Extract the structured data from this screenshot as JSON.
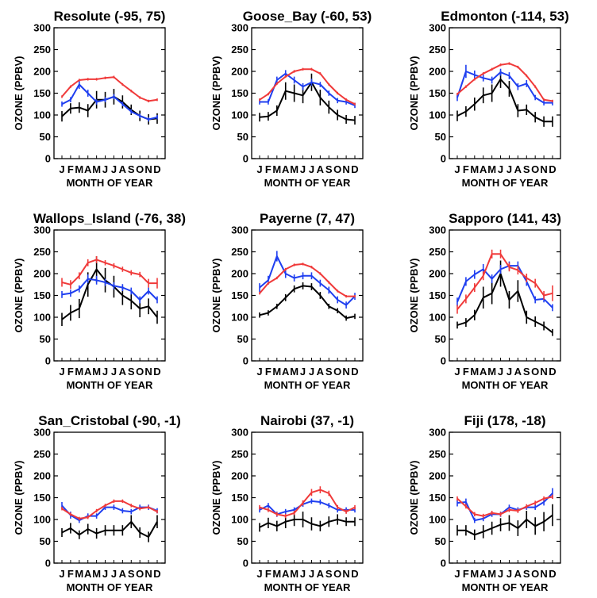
{
  "colors": {
    "black": "#000000",
    "blue": "#1f3ff0",
    "red": "#f03a3a"
  },
  "chart_data": [
    {
      "type": "line",
      "title": "Resolute (-95, 75)",
      "xlabel": "MONTH OF YEAR",
      "ylabel": "OZONE (PPBV)",
      "x": [
        "J",
        "F",
        "M",
        "A",
        "M",
        "J",
        "J",
        "A",
        "S",
        "O",
        "N",
        "D"
      ],
      "ylim": [
        0,
        300
      ],
      "yticks": [
        "0",
        "50",
        "100",
        "150",
        "200",
        "250",
        "300"
      ],
      "series": [
        {
          "color": "black",
          "values": [
            97,
            115,
            117,
            110,
            135,
            135,
            142,
            130,
            112,
            98,
            90,
            92
          ],
          "err": [
            12,
            12,
            12,
            15,
            20,
            18,
            18,
            15,
            12,
            12,
            12,
            12
          ]
        },
        {
          "color": "blue",
          "values": [
            125,
            135,
            170,
            150,
            130,
            135,
            142,
            125,
            108,
            98,
            90,
            95
          ],
          "err": [
            6,
            6,
            10,
            8,
            6,
            6,
            6,
            5,
            5,
            5,
            5,
            5
          ]
        },
        {
          "color": "red",
          "values": [
            142,
            165,
            180,
            182,
            182,
            185,
            187,
            170,
            155,
            140,
            132,
            135
          ],
          "err": [
            3,
            3,
            3,
            3,
            3,
            3,
            3,
            3,
            3,
            3,
            3,
            3
          ]
        }
      ]
    },
    {
      "type": "line",
      "title": "Goose_Bay (-60, 53)",
      "xlabel": "MONTH OF YEAR",
      "ylabel": "OZONE (PPBV)",
      "x": [
        "J",
        "F",
        "M",
        "A",
        "M",
        "J",
        "J",
        "A",
        "S",
        "O",
        "N",
        "D"
      ],
      "ylim": [
        0,
        300
      ],
      "yticks": [
        "0",
        "50",
        "100",
        "150",
        "200",
        "250",
        "300"
      ],
      "series": [
        {
          "color": "black",
          "values": [
            95,
            97,
            110,
            155,
            150,
            145,
            175,
            140,
            118,
            100,
            90,
            88
          ],
          "err": [
            10,
            10,
            12,
            20,
            20,
            18,
            20,
            18,
            15,
            12,
            10,
            10
          ]
        },
        {
          "color": "blue",
          "values": [
            130,
            130,
            180,
            195,
            180,
            165,
            175,
            170,
            150,
            133,
            130,
            122
          ],
          "err": [
            6,
            6,
            8,
            8,
            8,
            8,
            8,
            6,
            6,
            6,
            6,
            6
          ]
        },
        {
          "color": "red",
          "values": [
            135,
            148,
            172,
            188,
            200,
            205,
            205,
            195,
            170,
            150,
            135,
            125
          ],
          "err": [
            3,
            3,
            3,
            3,
            3,
            3,
            3,
            3,
            3,
            3,
            3,
            3
          ]
        }
      ]
    },
    {
      "type": "line",
      "title": "Edmonton (-114, 53)",
      "xlabel": "MONTH OF YEAR",
      "ylabel": "OZONE (PPBV)",
      "x": [
        "J",
        "F",
        "M",
        "A",
        "M",
        "J",
        "J",
        "A",
        "S",
        "O",
        "N",
        "D"
      ],
      "ylim": [
        0,
        300
      ],
      "yticks": [
        "0",
        "50",
        "100",
        "150",
        "200",
        "250",
        "300"
      ],
      "series": [
        {
          "color": "black",
          "values": [
            98,
            108,
            125,
            145,
            150,
            182,
            160,
            110,
            112,
            95,
            85,
            85
          ],
          "err": [
            12,
            12,
            15,
            18,
            20,
            20,
            18,
            15,
            12,
            12,
            12,
            12
          ]
        },
        {
          "color": "blue",
          "values": [
            140,
            200,
            192,
            185,
            180,
            198,
            190,
            165,
            172,
            140,
            128,
            128
          ],
          "err": [
            8,
            15,
            10,
            8,
            8,
            8,
            8,
            8,
            8,
            6,
            6,
            6
          ]
        },
        {
          "color": "red",
          "values": [
            148,
            165,
            182,
            195,
            205,
            215,
            218,
            210,
            190,
            165,
            135,
            132
          ],
          "err": [
            3,
            3,
            3,
            3,
            3,
            3,
            3,
            3,
            3,
            3,
            3,
            3
          ]
        }
      ]
    },
    {
      "type": "line",
      "title": "Wallops_Island (-76, 38)",
      "xlabel": "MONTH OF YEAR",
      "ylabel": "OZONE (PPBV)",
      "x": [
        "J",
        "F",
        "M",
        "A",
        "M",
        "J",
        "J",
        "A",
        "S",
        "O",
        "N",
        "D"
      ],
      "ylim": [
        0,
        300
      ],
      "yticks": [
        "0",
        "50",
        "100",
        "150",
        "200",
        "250",
        "300"
      ],
      "series": [
        {
          "color": "black",
          "values": [
            95,
            110,
            120,
            175,
            210,
            185,
            170,
            150,
            138,
            120,
            125,
            100
          ],
          "err": [
            15,
            18,
            22,
            28,
            30,
            28,
            25,
            22,
            20,
            20,
            18,
            15
          ]
        },
        {
          "color": "blue",
          "values": [
            152,
            155,
            165,
            188,
            185,
            180,
            172,
            168,
            160,
            140,
            160,
            140
          ],
          "err": [
            8,
            8,
            8,
            10,
            10,
            8,
            8,
            8,
            8,
            8,
            8,
            8
          ]
        },
        {
          "color": "red",
          "values": [
            180,
            175,
            195,
            225,
            232,
            225,
            218,
            210,
            202,
            198,
            178,
            178
          ],
          "err": [
            10,
            10,
            8,
            8,
            8,
            6,
            6,
            6,
            6,
            6,
            10,
            12
          ]
        }
      ]
    },
    {
      "type": "line",
      "title": "Payerne (7, 47)",
      "xlabel": "MONTH OF YEAR",
      "ylabel": "OZONE (PPBV)",
      "x": [
        "J",
        "F",
        "M",
        "A",
        "M",
        "J",
        "J",
        "A",
        "S",
        "O",
        "N",
        "D"
      ],
      "ylim": [
        0,
        300
      ],
      "yticks": [
        "0",
        "50",
        "100",
        "150",
        "200",
        "250",
        "300"
      ],
      "series": [
        {
          "color": "black",
          "values": [
            105,
            110,
            125,
            145,
            165,
            172,
            170,
            150,
            125,
            115,
            98,
            102
          ],
          "err": [
            6,
            6,
            6,
            8,
            8,
            8,
            8,
            8,
            6,
            6,
            6,
            6
          ]
        },
        {
          "color": "blue",
          "values": [
            168,
            185,
            240,
            200,
            190,
            195,
            195,
            178,
            162,
            140,
            128,
            148
          ],
          "err": [
            10,
            10,
            12,
            10,
            8,
            8,
            8,
            8,
            8,
            8,
            8,
            8
          ]
        },
        {
          "color": "red",
          "values": [
            155,
            178,
            190,
            210,
            220,
            222,
            215,
            200,
            180,
            160,
            148,
            148
          ],
          "err": [
            3,
            3,
            3,
            3,
            3,
            3,
            3,
            3,
            3,
            3,
            3,
            3
          ]
        }
      ]
    },
    {
      "type": "line",
      "title": "Sapporo (141, 43)",
      "xlabel": "MONTH OF YEAR",
      "ylabel": "OZONE (PPBV)",
      "x": [
        "J",
        "F",
        "M",
        "A",
        "M",
        "J",
        "J",
        "A",
        "S",
        "O",
        "N",
        "D"
      ],
      "ylim": [
        0,
        300
      ],
      "yticks": [
        "0",
        "50",
        "100",
        "150",
        "200",
        "250",
        "300"
      ],
      "series": [
        {
          "color": "black",
          "values": [
            82,
            88,
            105,
            145,
            155,
            200,
            140,
            160,
            100,
            90,
            80,
            65
          ],
          "err": [
            8,
            10,
            12,
            25,
            25,
            30,
            20,
            25,
            15,
            12,
            10,
            8
          ]
        },
        {
          "color": "blue",
          "values": [
            135,
            182,
            198,
            210,
            188,
            210,
            218,
            218,
            182,
            140,
            142,
            122
          ],
          "err": [
            10,
            10,
            10,
            12,
            10,
            10,
            10,
            10,
            10,
            8,
            8,
            8
          ]
        },
        {
          "color": "red",
          "values": [
            118,
            142,
            168,
            195,
            245,
            245,
            215,
            208,
            190,
            178,
            150,
            155
          ],
          "err": [
            10,
            10,
            10,
            10,
            10,
            10,
            10,
            10,
            10,
            10,
            10,
            18
          ]
        }
      ]
    },
    {
      "type": "line",
      "title": "San_Cristobal (-90, -1)",
      "xlabel": "MONTH OF YEAR",
      "ylabel": "OZONE (PPBV)",
      "x": [
        "J",
        "F",
        "M",
        "A",
        "M",
        "J",
        "J",
        "A",
        "S",
        "O",
        "N",
        "D"
      ],
      "ylim": [
        0,
        300
      ],
      "yticks": [
        "0",
        "50",
        "100",
        "150",
        "200",
        "250",
        "300"
      ],
      "series": [
        {
          "color": "black",
          "values": [
            70,
            80,
            65,
            78,
            68,
            75,
            75,
            75,
            95,
            70,
            60,
            95
          ],
          "err": [
            10,
            12,
            10,
            12,
            12,
            12,
            12,
            12,
            15,
            12,
            12,
            15
          ]
        },
        {
          "color": "blue",
          "values": [
            132,
            110,
            98,
            108,
            108,
            128,
            128,
            120,
            118,
            128,
            128,
            120
          ],
          "err": [
            8,
            8,
            6,
            6,
            6,
            6,
            6,
            6,
            6,
            6,
            6,
            6
          ]
        },
        {
          "color": "red",
          "values": [
            125,
            112,
            102,
            105,
            120,
            132,
            142,
            142,
            132,
            125,
            128,
            118
          ],
          "err": [
            4,
            4,
            4,
            4,
            4,
            4,
            4,
            4,
            4,
            4,
            4,
            4
          ]
        }
      ]
    },
    {
      "type": "line",
      "title": "Nairobi (37, -1)",
      "xlabel": "MONTH OF YEAR",
      "ylabel": "OZONE (PPBV)",
      "x": [
        "J",
        "F",
        "M",
        "A",
        "M",
        "J",
        "J",
        "A",
        "S",
        "O",
        "N",
        "D"
      ],
      "ylim": [
        0,
        300
      ],
      "yticks": [
        "0",
        "50",
        "100",
        "150",
        "200",
        "250",
        "300"
      ],
      "series": [
        {
          "color": "black",
          "values": [
            82,
            92,
            85,
            95,
            100,
            100,
            90,
            85,
            95,
            100,
            95,
            95
          ],
          "err": [
            10,
            12,
            12,
            15,
            15,
            18,
            15,
            12,
            12,
            12,
            10,
            10
          ]
        },
        {
          "color": "blue",
          "values": [
            122,
            132,
            112,
            118,
            122,
            135,
            142,
            140,
            132,
            122,
            122,
            122
          ],
          "err": [
            6,
            6,
            6,
            6,
            6,
            6,
            6,
            6,
            6,
            6,
            6,
            6
          ]
        },
        {
          "color": "red",
          "values": [
            128,
            122,
            112,
            108,
            115,
            138,
            162,
            168,
            160,
            128,
            118,
            128
          ],
          "err": [
            5,
            5,
            5,
            5,
            5,
            6,
            8,
            8,
            6,
            5,
            5,
            5
          ]
        }
      ]
    },
    {
      "type": "line",
      "title": "Fiji (178, -18)",
      "xlabel": "MONTH OF YEAR",
      "ylabel": "OZONE (PPBV)",
      "x": [
        "J",
        "F",
        "M",
        "A",
        "M",
        "J",
        "J",
        "A",
        "S",
        "O",
        "N",
        "D"
      ],
      "ylim": [
        0,
        300
      ],
      "yticks": [
        "0",
        "50",
        "100",
        "150",
        "200",
        "250",
        "300"
      ],
      "series": [
        {
          "color": "black",
          "values": [
            75,
            75,
            65,
            72,
            80,
            88,
            92,
            80,
            100,
            85,
            95,
            110
          ],
          "err": [
            12,
            12,
            12,
            15,
            15,
            15,
            18,
            18,
            20,
            20,
            22,
            25
          ]
        },
        {
          "color": "blue",
          "values": [
            138,
            140,
            98,
            102,
            112,
            112,
            128,
            122,
            128,
            128,
            140,
            160
          ],
          "err": [
            8,
            8,
            6,
            6,
            6,
            6,
            6,
            6,
            6,
            6,
            8,
            12
          ]
        },
        {
          "color": "red",
          "values": [
            148,
            130,
            112,
            108,
            115,
            112,
            122,
            120,
            130,
            138,
            148,
            152
          ],
          "err": [
            5,
            5,
            5,
            5,
            5,
            5,
            5,
            5,
            5,
            5,
            5,
            5
          ]
        }
      ]
    }
  ]
}
